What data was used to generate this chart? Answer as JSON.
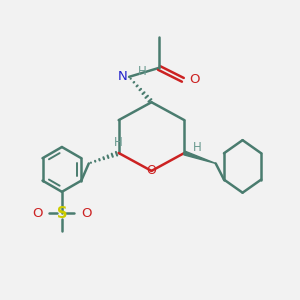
{
  "bg_color": "#f2f2f2",
  "bond_color": "#4a7c6f",
  "bond_width": 1.8,
  "N_color": "#2222cc",
  "O_color": "#cc2222",
  "S_color": "#cccc00",
  "H_color": "#6a9a8f",
  "figsize": [
    3.0,
    3.0
  ],
  "dpi": 100,
  "xlim": [
    0,
    10
  ],
  "ylim": [
    0,
    10
  ]
}
